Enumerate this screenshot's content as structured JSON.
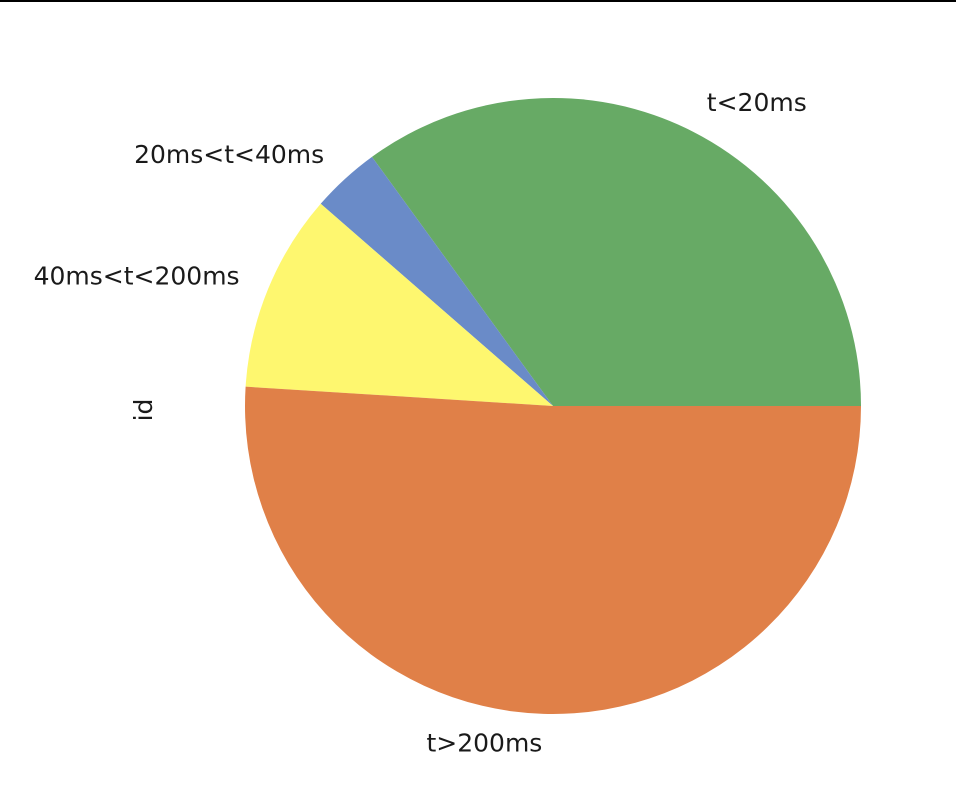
{
  "chart_data": {
    "type": "pie",
    "ylabel": "id",
    "start_angle_deg": 0,
    "direction": "counterclockwise",
    "slices": [
      {
        "label": "t<20ms",
        "value": 35.0,
        "color": "#67aa65"
      },
      {
        "label": "20ms<t<40ms",
        "value": 3.6,
        "color": "#6a8bc8"
      },
      {
        "label": "40ms<t<200ms",
        "value": 10.4,
        "color": "#fef76f"
      },
      {
        "label": "t>200ms",
        "value": 51.0,
        "color": "#e08048"
      }
    ]
  }
}
